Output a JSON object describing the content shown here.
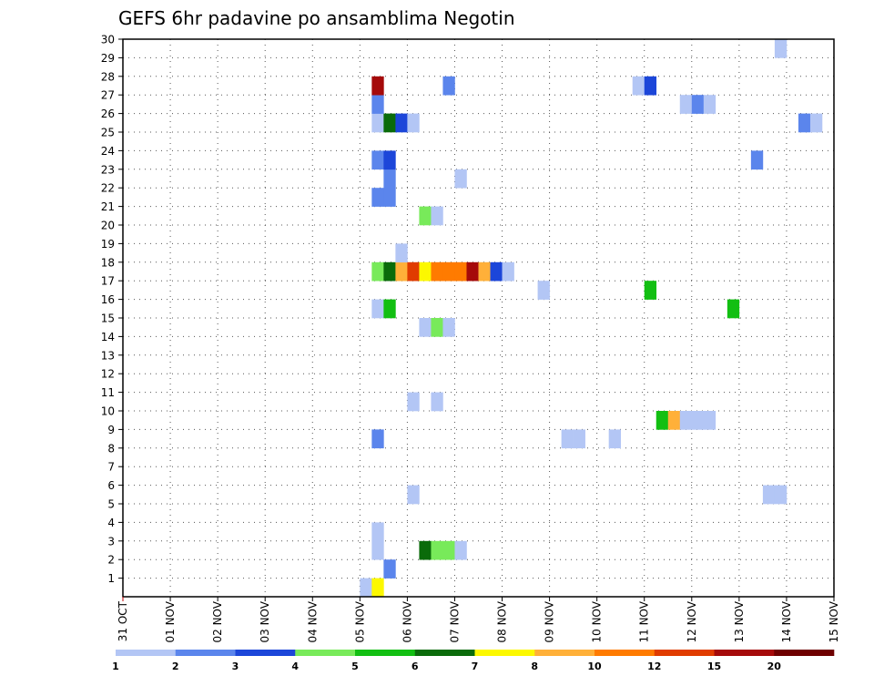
{
  "chart_data": {
    "type": "heatmap",
    "title": "GEFS 6hr padavine po ansamblima Negotin",
    "x_ticks": [
      "31 OCT",
      "01 NOV",
      "02 NOV",
      "03 NOV",
      "04 NOV",
      "05 NOV",
      "06 NOV",
      "07 NOV",
      "08 NOV",
      "09 NOV",
      "10 NOV",
      "11 NOV",
      "12 NOV",
      "13 NOV",
      "14 NOV",
      "15 NOV"
    ],
    "y_ticks": [
      "1",
      "2",
      "3",
      "4",
      "5",
      "6",
      "7",
      "8",
      "9",
      "10",
      "11",
      "12",
      "13",
      "14",
      "15",
      "16",
      "17",
      "18",
      "19",
      "20",
      "21",
      "22",
      "23",
      "24",
      "25",
      "26",
      "27",
      "28",
      "29",
      "30"
    ],
    "x_range_days": [
      0,
      15
    ],
    "y_range_members": [
      0,
      30
    ],
    "steps_per_day": 4,
    "grid": true,
    "colorbar": {
      "labels": [
        "1",
        "2",
        "3",
        "4",
        "5",
        "6",
        "7",
        "8",
        "10",
        "12",
        "15",
        "20"
      ],
      "colors": [
        "#b3c6f5",
        "#5b85ec",
        "#1c46d9",
        "#78ea5a",
        "#12bf12",
        "#0a6b0a",
        "#fcf800",
        "#ffb039",
        "#ff7b00",
        "#e03c00",
        "#a50a0a",
        "#6e0000"
      ]
    },
    "cells": [
      {
        "m": 0,
        "d": 5.0,
        "c": 0
      },
      {
        "m": 0,
        "d": 5.25,
        "c": 6
      },
      {
        "m": 1,
        "d": 5.5,
        "c": 1
      },
      {
        "m": 2,
        "d": 5.25,
        "c": 0
      },
      {
        "m": 2,
        "d": 6.25,
        "c": 5
      },
      {
        "m": 2,
        "d": 6.5,
        "c": 3
      },
      {
        "m": 2,
        "d": 6.75,
        "c": 3
      },
      {
        "m": 2,
        "d": 7.0,
        "c": 0
      },
      {
        "m": 3,
        "d": 5.25,
        "c": 0
      },
      {
        "m": 5,
        "d": 6.0,
        "c": 0
      },
      {
        "m": 5,
        "d": 13.5,
        "c": 0
      },
      {
        "m": 5,
        "d": 13.75,
        "c": 0
      },
      {
        "m": 8,
        "d": 5.25,
        "c": 1
      },
      {
        "m": 8,
        "d": 9.25,
        "c": 0
      },
      {
        "m": 8,
        "d": 9.5,
        "c": 0
      },
      {
        "m": 8,
        "d": 10.25,
        "c": 0
      },
      {
        "m": 9,
        "d": 11.25,
        "c": 4
      },
      {
        "m": 9,
        "d": 11.5,
        "c": 7
      },
      {
        "m": 9,
        "d": 11.75,
        "c": 0
      },
      {
        "m": 9,
        "d": 12.0,
        "c": 0
      },
      {
        "m": 9,
        "d": 12.25,
        "c": 0
      },
      {
        "m": 10,
        "d": 6.0,
        "c": 0
      },
      {
        "m": 10,
        "d": 6.5,
        "c": 0
      },
      {
        "m": 14,
        "d": 6.25,
        "c": 0
      },
      {
        "m": 14,
        "d": 6.5,
        "c": 3
      },
      {
        "m": 14,
        "d": 6.75,
        "c": 0
      },
      {
        "m": 15,
        "d": 5.25,
        "c": 0
      },
      {
        "m": 15,
        "d": 5.5,
        "c": 4
      },
      {
        "m": 15,
        "d": 12.75,
        "c": 4
      },
      {
        "m": 16,
        "d": 8.75,
        "c": 0
      },
      {
        "m": 16,
        "d": 11.0,
        "c": 4
      },
      {
        "m": 17,
        "d": 5.25,
        "c": 3
      },
      {
        "m": 17,
        "d": 5.5,
        "c": 5
      },
      {
        "m": 17,
        "d": 5.75,
        "c": 7
      },
      {
        "m": 17,
        "d": 6.0,
        "c": 9
      },
      {
        "m": 17,
        "d": 6.25,
        "c": 6
      },
      {
        "m": 17,
        "d": 6.5,
        "c": 8
      },
      {
        "m": 17,
        "d": 6.75,
        "c": 8
      },
      {
        "m": 17,
        "d": 7.0,
        "c": 8
      },
      {
        "m": 17,
        "d": 7.25,
        "c": 10
      },
      {
        "m": 17,
        "d": 7.5,
        "c": 7
      },
      {
        "m": 17,
        "d": 7.75,
        "c": 2
      },
      {
        "m": 17,
        "d": 8.0,
        "c": 0
      },
      {
        "m": 18,
        "d": 5.75,
        "c": 0
      },
      {
        "m": 20,
        "d": 6.25,
        "c": 3
      },
      {
        "m": 20,
        "d": 6.5,
        "c": 0
      },
      {
        "m": 21,
        "d": 5.25,
        "c": 1
      },
      {
        "m": 21,
        "d": 5.5,
        "c": 1
      },
      {
        "m": 22,
        "d": 5.5,
        "c": 1
      },
      {
        "m": 22,
        "d": 7.0,
        "c": 0
      },
      {
        "m": 23,
        "d": 5.25,
        "c": 1
      },
      {
        "m": 23,
        "d": 5.5,
        "c": 2
      },
      {
        "m": 23,
        "d": 13.25,
        "c": 1
      },
      {
        "m": 25,
        "d": 5.25,
        "c": 0
      },
      {
        "m": 25,
        "d": 5.5,
        "c": 5
      },
      {
        "m": 25,
        "d": 5.75,
        "c": 2
      },
      {
        "m": 25,
        "d": 6.0,
        "c": 0
      },
      {
        "m": 25,
        "d": 14.25,
        "c": 1
      },
      {
        "m": 25,
        "d": 14.5,
        "c": 0
      },
      {
        "m": 26,
        "d": 5.25,
        "c": 1
      },
      {
        "m": 26,
        "d": 11.75,
        "c": 0
      },
      {
        "m": 26,
        "d": 12.0,
        "c": 1
      },
      {
        "m": 26,
        "d": 12.25,
        "c": 0
      },
      {
        "m": 27,
        "d": 5.25,
        "c": 10
      },
      {
        "m": 27,
        "d": 6.75,
        "c": 1
      },
      {
        "m": 27,
        "d": 10.75,
        "c": 0
      },
      {
        "m": 27,
        "d": 11.0,
        "c": 2
      },
      {
        "m": 29,
        "d": 13.75,
        "c": 0
      }
    ]
  }
}
